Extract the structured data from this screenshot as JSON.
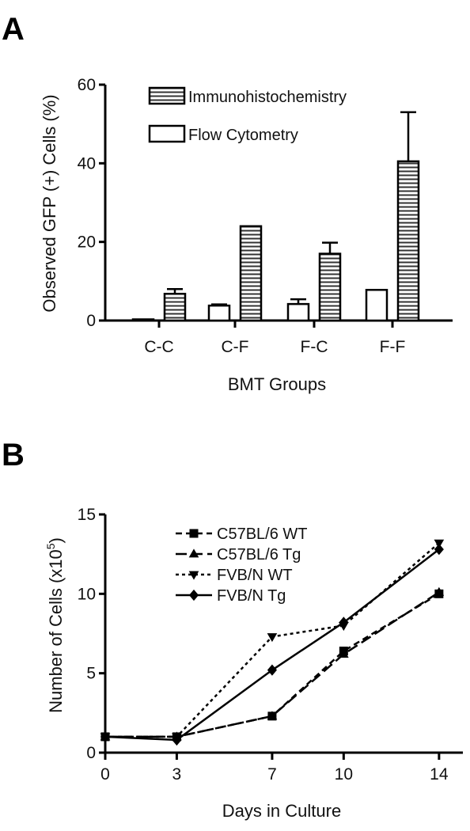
{
  "chart_data": [
    {
      "panel": "A",
      "type": "bar",
      "xlabel": "BMT Groups",
      "ylabel": "Observed GFP (+) Cells (%)",
      "ylim": [
        0,
        60
      ],
      "yticks": [
        "0",
        "20",
        "40",
        "60"
      ],
      "categories": [
        "C-C",
        "C-F",
        "F-C",
        "F-F"
      ],
      "legend_position": "top-right",
      "series": [
        {
          "name": "Flow Cytometry",
          "pattern": "open",
          "values": [
            0.3,
            3.8,
            4.2,
            7.8
          ],
          "errors": [
            0,
            0.3,
            1.2,
            0
          ]
        },
        {
          "name": "Immunohistochemistry",
          "pattern": "horizontal-stripes",
          "values": [
            6.8,
            24,
            17,
            40.5
          ],
          "errors": [
            1.2,
            0,
            2.8,
            12.5
          ]
        }
      ]
    },
    {
      "panel": "B",
      "type": "line",
      "xlabel": "Days in Culture",
      "ylabel": "Number of Cells (x10",
      "ylabel_sup": "5",
      "ylabel_close": ")",
      "xlim": [
        0,
        15
      ],
      "ylim": [
        0,
        15
      ],
      "x": [
        0,
        3,
        7,
        10,
        14
      ],
      "xticks": [
        "0",
        "3",
        "7",
        "10",
        "14"
      ],
      "yticks": [
        "0",
        "5",
        "10",
        "15"
      ],
      "legend_position": "top-left",
      "series": [
        {
          "name": "C57BL/6 WT",
          "marker": "square",
          "dash": "8,5",
          "values": [
            1,
            1,
            2.3,
            6.4,
            10
          ]
        },
        {
          "name": "C57BL/6 Tg",
          "marker": "triangle-up",
          "dash": "14,6",
          "values": [
            1,
            1,
            2.3,
            6.2,
            10.1
          ]
        },
        {
          "name": "FVB/N WT",
          "marker": "triangle-down",
          "dash": "4,4",
          "values": [
            1,
            1,
            7.3,
            8,
            13.2
          ]
        },
        {
          "name": "FVB/N Tg",
          "marker": "diamond",
          "dash": "",
          "values": [
            1,
            0.8,
            5.2,
            8.2,
            12.8
          ]
        }
      ]
    }
  ]
}
